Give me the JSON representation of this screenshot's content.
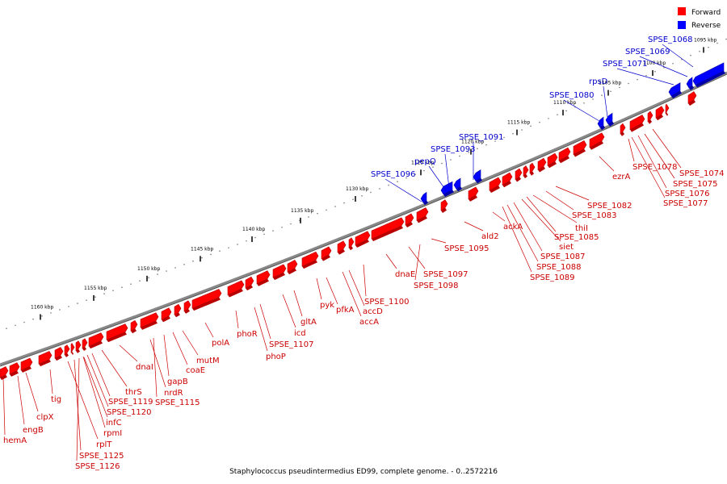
{
  "caption": "Staphylococcus pseudintermedius ED99, complete genome. - 0..2572216",
  "legend": [
    {
      "label": "Forward",
      "color": "#ff0000"
    },
    {
      "label": "Reverse",
      "color": "#0000ff"
    }
  ],
  "colors": {
    "forward": "#ff0000",
    "forward_dark": "#b80000",
    "reverse": "#0000ff",
    "reverse_dark": "#0000a8",
    "backbone": "#888888",
    "forward_label": "#cc0000",
    "reverse_label": "#0000cc"
  },
  "scale": {
    "unit": "kbp",
    "ticks": [
      "1095 kbp",
      "1100 kbp",
      "1105 kbp",
      "1110 kbp",
      "1115 kbp",
      "1120 kbp",
      "1125 kbp",
      "1130 kbp",
      "1135 kbp",
      "1140 kbp",
      "1145 kbp",
      "1150 kbp",
      "1155 kbp",
      "1160 kbp"
    ]
  },
  "forward_labels": [
    "hemA",
    "engB",
    "clpX",
    "tig",
    "rplT",
    "SPSE_1125",
    "SPSE_1126",
    "rpmI",
    "infC",
    "SPSE_1120",
    "SPSE_1119",
    "thrS",
    "dnaI",
    "nrdR",
    "SPSE_1115",
    "gapB",
    "coaE",
    "mutM",
    "polA",
    "phoR",
    "phoP",
    "SPSE_1107",
    "icd",
    "gltA",
    "pyk",
    "pfkA",
    "accA",
    "accD",
    "SPSE_1100",
    "dnaE",
    "SPSE_1097",
    "SPSE_1098",
    "SPSE_1095",
    "ald2",
    "ackA",
    "SPSE_1089",
    "SPSE_1088",
    "SPSE_1087",
    "siet",
    "SPSE_1085",
    "thiI",
    "SPSE_1083",
    "SPSE_1082",
    "ezrA",
    "SPSE_1078",
    "SPSE_1077",
    "SPSE_1076",
    "SPSE_1075",
    "SPSE_1074"
  ],
  "reverse_labels": [
    "SPSE_1068",
    "SPSE_1069",
    "SPSE_1071",
    "rpsD",
    "SPSE_1080",
    "SPSE_1091",
    "SPSE_1093",
    "pepQ",
    "SPSE_1096"
  ]
}
